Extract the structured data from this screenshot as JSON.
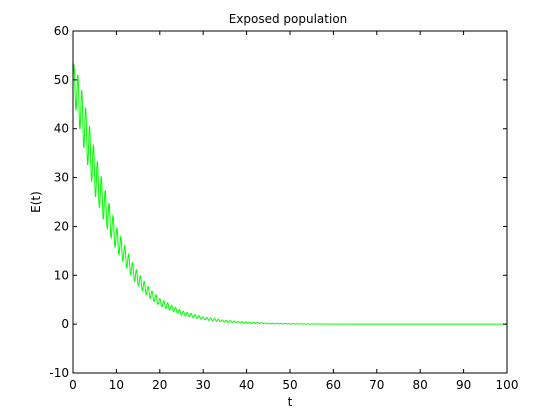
{
  "chart_data": {
    "type": "line",
    "title": "Exposed population",
    "xlabel": "t",
    "ylabel": "E(t)",
    "xlim": [
      0,
      100
    ],
    "ylim": [
      -10,
      60
    ],
    "xticks": [
      0,
      10,
      20,
      30,
      40,
      50,
      60,
      70,
      80,
      90,
      100
    ],
    "yticks": [
      -10,
      0,
      10,
      20,
      30,
      40,
      50,
      60
    ],
    "grid": false,
    "line_color": "#00ff00",
    "series": [
      {
        "x": [
          0,
          1,
          2,
          3,
          4,
          5,
          6,
          7,
          8,
          9,
          10,
          12,
          14,
          16,
          18,
          20,
          25,
          30,
          35,
          40,
          45,
          50,
          55,
          60,
          70,
          80,
          90,
          100
        ],
        "y": [
          50,
          47,
          43,
          39,
          35,
          31,
          28,
          25,
          22.5,
          20,
          17.5,
          14,
          10.5,
          8,
          6,
          4.5,
          2.3,
          1.2,
          0.6,
          0.3,
          0.15,
          0.07,
          0.03,
          0.01,
          0,
          0,
          0,
          0
        ],
        "oscillation_amplitude": [
          3.5,
          4.5,
          5,
          5,
          4.8,
          4.5,
          4,
          3.6,
          3.2,
          2.8,
          2.4,
          1.9,
          1.5,
          1.2,
          0.95,
          0.75,
          0.45,
          0.3,
          0.2,
          0.13,
          0.08,
          0.05,
          0.03,
          0.02,
          0,
          0,
          0,
          0
        ],
        "oscillation_period": 0.9
      }
    ]
  }
}
